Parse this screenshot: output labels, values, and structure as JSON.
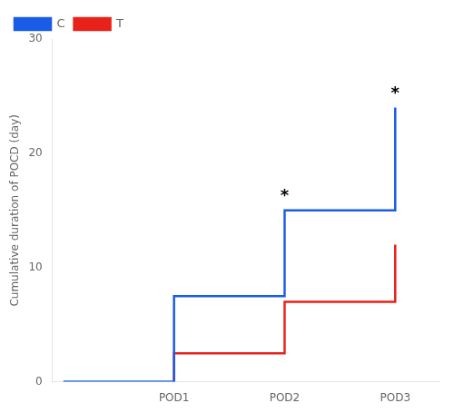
{
  "chart_data": {
    "type": "line",
    "ylabel": "Cumulative duration of POCD (day)",
    "series": [
      {
        "name": "C",
        "color": "#1a5ce5",
        "x": [
          0,
          1,
          1,
          2,
          2,
          3,
          3
        ],
        "values": [
          0,
          0,
          7.5,
          7.5,
          15.0,
          15.0,
          24.0
        ]
      },
      {
        "name": "T",
        "color": "#e8221a",
        "x": [
          1,
          1,
          2,
          2,
          2,
          3,
          3
        ],
        "values": [
          0,
          2.5,
          2.5,
          4.0,
          7.0,
          7.0,
          12.0
        ]
      }
    ],
    "xlim": [
      -0.1,
      3.4
    ],
    "xticks": [
      {
        "value": 1,
        "label": "POD1"
      },
      {
        "value": 2,
        "label": "POD2"
      },
      {
        "value": 3,
        "label": "POD3"
      }
    ],
    "ylim": [
      0,
      30
    ],
    "yticks": [
      0,
      10,
      20,
      30
    ],
    "annotations": [
      {
        "x": 2,
        "y": 15.5,
        "text": "*"
      },
      {
        "x": 3,
        "y": 24.5,
        "text": "*"
      }
    ],
    "legend": "upper left",
    "grid": false
  }
}
